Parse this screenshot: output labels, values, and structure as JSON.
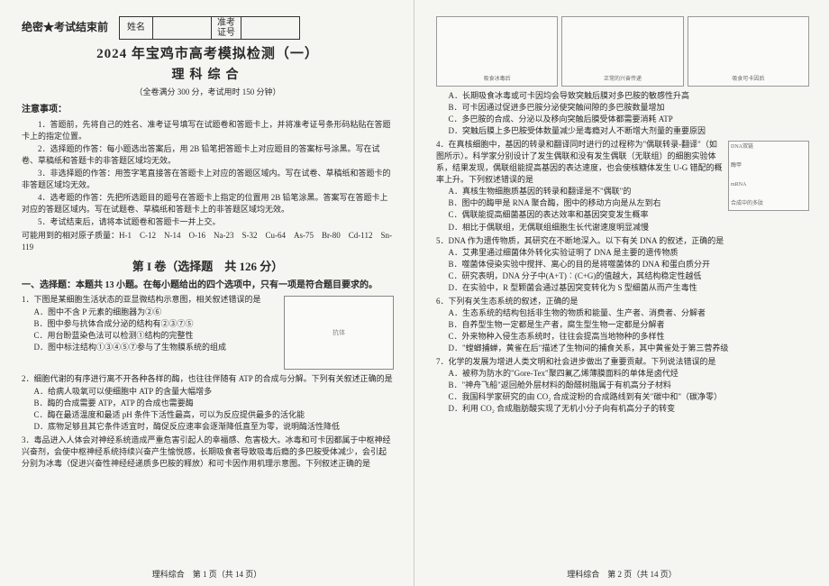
{
  "header": {
    "secret": "绝密★考试结束前",
    "name_label": "姓名",
    "id_label_top": "准考",
    "id_label_bot": "证号"
  },
  "title": "2024 年宝鸡市高考模拟检测（一）",
  "subtitle": "理科综合",
  "meta": "（全卷满分 300 分，考试用时 150 分钟）",
  "notice_head": "注意事项：",
  "notices": [
    "1．答题前，先将自己的姓名、准考证号填写在试题卷和答题卡上，并将准考证号条形码粘贴在答题卡上的指定位置。",
    "2．选择题的作答：每小题选出答案后，用 2B 铅笔把答题卡上对应题目的答案标号涂黑。写在试卷、草稿纸和答题卡的非答题区域均无效。",
    "3．非选择题的作答：用签字笔直接答在答题卡上对应的答题区域内。写在试卷、草稿纸和答题卡的非答题区域均无效。",
    "4．选考题的作答：先把所选题目的题号在答题卡上指定的位置用 2B 铅笔涂黑。答案写在答题卡上对应的答题区域内。写在试题卷、草稿纸和答题卡上的非答题区域均无效。",
    "5．考试结束后，请将本试题卷和答题卡一并上交。"
  ],
  "masses": "可能用到的相对原子质量：H-1　C-12　N-14　O-16　Na-23　S-32　Cu-64　As-75　Br-80　Cd-112　Sn-119",
  "part1_title": "第 I 卷（选择题　共 126 分）",
  "sec1_head": "一、选择题：本题共 13 小题。在每小题给出的四个选项中，只有一项是符合题目要求的。",
  "q1": {
    "stem": "1．下图是某细胞生活状态的亚显微结构示意图，相关叙述错误的是",
    "opts": [
      "A．图中不含 P 元素的细胞器为②⑥",
      "B．图中参与抗体合成分泌的结构有②③⑦⑤",
      "C．用台盼蓝染色法可以检测①结构的完整性",
      "D．图中标注结构①③④⑤⑦参与了生物膜系统的组成"
    ],
    "fig_label": "抗体"
  },
  "q2": {
    "stem": "2．细胞代谢的有序进行离不开各种各样的酶，也往往伴随有 ATP 的合成与分解。下列有关叙述正确的是",
    "opts": [
      "A．给病人吸氧可以使细胞中 ATP 的含量大幅增多",
      "B．酶的合成需要 ATP，ATP 的合成也需要酶",
      "C．酶在最适温度和最适 pH 条件下活性最高，可以为反应提供最多的活化能",
      "D．底物足够且其它条件适宜时，酶促反应速率会逐渐降低直至为零，说明酶活性降低"
    ]
  },
  "q3": {
    "stem": "3．毒品进入人体会对神经系统造成严重危害引起人的幸福感、危害极大。冰毒和可卡因都属于中枢神经兴奋剂，会使中枢神经系统持续兴奋产生愉悦感，长期吸食者导致吸毒后瘾的多巴胺受体减少，会引起分别为冰毒（促进兴奋性神经经递质多巴胺的释放）和可卡因作用机理示意图。下列叙述正确的是"
  },
  "footer_left": "理科综合　第 1 页（共 14 页）",
  "fig_strip": [
    "吸食冰毒后",
    "正常的兴奋传递",
    "吸食可卡因后"
  ],
  "q3_opts": [
    "A．长期吸食冰毒或可卡因均会导致突触后膜对多巴胺的敏感性升高",
    "B．可卡因通过促进多巴胺分泌使突触间隙的多巴胺数量增加",
    "C．多巴胺的合成、分泌以及移向突触后膜受体都需要消耗 ATP",
    "D．突触后膜上多巴胺受体数量减少是毒瘾对人不断增大剂量的重要原因"
  ],
  "q4": {
    "stem": "4．在真核细胞中，基因的转录和翻译同时进行的过程称为\"偶联转录-翻译\"（如图所示）。科学家分别设计了发生偶联和没有发生偶联（无联组）的细胞实验体系，结果发现，偶联组能提高基因的表达速度，也会使核糖体发生 U-G 错配的概率上升。下列叙述错误的是",
    "opts": [
      "A．真核生物细胞质基因的转录和翻译是不\"偶联\"的",
      "B．图中的酶甲是 RNA 聚合酶，图中的移动方向是从左到右",
      "C．偶联能提高细菌基因的表达效率和基因突变发生概率",
      "D．相比于偶联组，无偶联组细胞生长代谢速度明显减慢"
    ],
    "fig_labels": {
      "top": "DNA双链",
      "mid": "酶甲",
      "mrna": "mRNA",
      "bot": "合成中的多肽"
    }
  },
  "q5": {
    "stem": "5．DNA 作为遗传物质，其研究在不断地深入。以下有关 DNA 的叙述，正确的是",
    "opts": [
      "A．艾弗里通过细菌体外转化实验证明了 DNA 是主要的遗传物质",
      "B．噬菌体侵染实验中搅拌、离心的目的是将噬菌体的 DNA 和蛋白质分开",
      "C．研究表明，DNA 分子中(A+T)︰(C+G)的值越大，其结构稳定性越低",
      "D．在实验中，R 型颗菌会通过基因突变转化为 S 型细菌从而产生毒性"
    ]
  },
  "q6": {
    "stem": "6．下列有关生态系统的叙述，正确的是",
    "opts": [
      "A．生态系统的结构包括非生物的物质和能量、生产者、消费者、分解者",
      "B．自养型生物一定都是生产者，腐生型生物一定都是分解者",
      "C．外来物种入侵生态系统时，往往会提高当地物种的多样性",
      "D．\"螳螂捕蝉，黄雀在后\"描述了生物间的捕食关系，其中黄雀处于第三营养级"
    ]
  },
  "q7": {
    "stem": "7．化学的发展为增进人类文明和社会进步做出了重要贡献。下列说法错误的是",
    "opts": [
      "A．被称为防水的\"Gore-Tex\"聚四氟乙烯薄膜面料的单体是卤代烃",
      "B．\"神舟飞船\"返回舱外层材料的酚醛树脂属于有机高分子材料",
      "C．我国科学家研究的由 CO₂ 合成淀粉的合成路线到有关\"碳中和\"（碳净零）",
      "D．利用 CO₂ 合成脂肪酸实现了无机小分子向有机高分子的转变"
    ]
  },
  "footer_right": "理科综合　第 2 页（共 14 页）"
}
